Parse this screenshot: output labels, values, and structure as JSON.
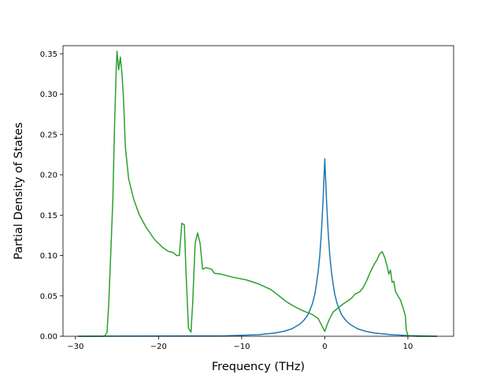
{
  "chart_data": {
    "type": "line",
    "title": "",
    "xlabel": "Frequency (THz)",
    "ylabel": "Partial Density of States",
    "xlim": [
      -31.5,
      15.5
    ],
    "ylim": [
      0,
      0.36
    ],
    "xticks": [
      -30,
      -20,
      -10,
      0,
      10
    ],
    "xtick_labels": [
      "−30",
      "−20",
      "−10",
      "0",
      "10"
    ],
    "yticks": [
      0,
      0.05,
      0.1,
      0.15,
      0.2,
      0.25,
      0.3,
      0.35
    ],
    "ytick_labels": [
      "0.00",
      "0.05",
      "0.10",
      "0.15",
      "0.20",
      "0.25",
      "0.30",
      "0.35"
    ],
    "grid": false,
    "legend": false,
    "series": [
      {
        "color": "#1f77b4",
        "points": [
          [
            -29.7,
            0
          ],
          [
            -12,
            0.0005
          ],
          [
            -8,
            0.002
          ],
          [
            -6,
            0.004
          ],
          [
            -5,
            0.006
          ],
          [
            -4,
            0.009
          ],
          [
            -3,
            0.015
          ],
          [
            -2.5,
            0.02
          ],
          [
            -2,
            0.027
          ],
          [
            -1.5,
            0.04
          ],
          [
            -1.2,
            0.052
          ],
          [
            -1,
            0.065
          ],
          [
            -0.8,
            0.08
          ],
          [
            -0.6,
            0.1
          ],
          [
            -0.4,
            0.13
          ],
          [
            -0.2,
            0.17
          ],
          [
            0,
            0.22
          ],
          [
            0.2,
            0.17
          ],
          [
            0.4,
            0.13
          ],
          [
            0.6,
            0.1
          ],
          [
            0.8,
            0.08
          ],
          [
            1,
            0.065
          ],
          [
            1.2,
            0.052
          ],
          [
            1.5,
            0.04
          ],
          [
            2,
            0.027
          ],
          [
            2.5,
            0.02
          ],
          [
            3,
            0.015
          ],
          [
            4,
            0.009
          ],
          [
            5,
            0.006
          ],
          [
            6,
            0.004
          ],
          [
            8,
            0.002
          ],
          [
            10,
            0.0008
          ],
          [
            13.5,
            0
          ]
        ]
      },
      {
        "color": "#2ca02c",
        "points": [
          [
            -29.7,
            0
          ],
          [
            -26.5,
            0
          ],
          [
            -26.2,
            0.005
          ],
          [
            -26,
            0.04
          ],
          [
            -25.8,
            0.09
          ],
          [
            -25.5,
            0.17
          ],
          [
            -25.3,
            0.26
          ],
          [
            -25.1,
            0.33
          ],
          [
            -25,
            0.353
          ],
          [
            -24.8,
            0.33
          ],
          [
            -24.6,
            0.346
          ],
          [
            -24.4,
            0.325
          ],
          [
            -24.2,
            0.29
          ],
          [
            -24,
            0.235
          ],
          [
            -23.6,
            0.195
          ],
          [
            -23,
            0.17
          ],
          [
            -22.3,
            0.15
          ],
          [
            -21.5,
            0.135
          ],
          [
            -20.5,
            0.12
          ],
          [
            -19.5,
            0.11
          ],
          [
            -18.8,
            0.105
          ],
          [
            -18.3,
            0.104
          ],
          [
            -17.8,
            0.1
          ],
          [
            -17.5,
            0.1
          ],
          [
            -17.2,
            0.14
          ],
          [
            -16.9,
            0.138
          ],
          [
            -16.7,
            0.08
          ],
          [
            -16.4,
            0.01
          ],
          [
            -16.1,
            0.005
          ],
          [
            -15.9,
            0.04
          ],
          [
            -15.6,
            0.115
          ],
          [
            -15.3,
            0.128
          ],
          [
            -15,
            0.115
          ],
          [
            -14.7,
            0.083
          ],
          [
            -14.3,
            0.085
          ],
          [
            -13.6,
            0.083
          ],
          [
            -13.3,
            0.078
          ],
          [
            -12.5,
            0.077
          ],
          [
            -11,
            0.073
          ],
          [
            -9.5,
            0.07
          ],
          [
            -8,
            0.065
          ],
          [
            -6.5,
            0.058
          ],
          [
            -5.5,
            0.05
          ],
          [
            -4.5,
            0.042
          ],
          [
            -3.5,
            0.036
          ],
          [
            -2.5,
            0.031
          ],
          [
            -1.5,
            0.027
          ],
          [
            -0.8,
            0.022
          ],
          [
            -0.3,
            0.012
          ],
          [
            0,
            0.006
          ],
          [
            0.3,
            0.015
          ],
          [
            0.6,
            0.022
          ],
          [
            1,
            0.03
          ],
          [
            1.6,
            0.035
          ],
          [
            2.2,
            0.04
          ],
          [
            2.8,
            0.044
          ],
          [
            3.3,
            0.048
          ],
          [
            3.6,
            0.052
          ],
          [
            4.2,
            0.055
          ],
          [
            4.6,
            0.06
          ],
          [
            5,
            0.068
          ],
          [
            5.5,
            0.08
          ],
          [
            6,
            0.09
          ],
          [
            6.3,
            0.095
          ],
          [
            6.6,
            0.102
          ],
          [
            6.9,
            0.105
          ],
          [
            7.2,
            0.098
          ],
          [
            7.5,
            0.087
          ],
          [
            7.7,
            0.077
          ],
          [
            7.9,
            0.082
          ],
          [
            8.1,
            0.067
          ],
          [
            8.3,
            0.068
          ],
          [
            8.5,
            0.056
          ],
          [
            8.8,
            0.05
          ],
          [
            9.1,
            0.045
          ],
          [
            9.4,
            0.036
          ],
          [
            9.7,
            0.025
          ],
          [
            9.8,
            0.008
          ],
          [
            10,
            0.001
          ],
          [
            11,
            0
          ],
          [
            13.5,
            0
          ]
        ]
      }
    ]
  }
}
